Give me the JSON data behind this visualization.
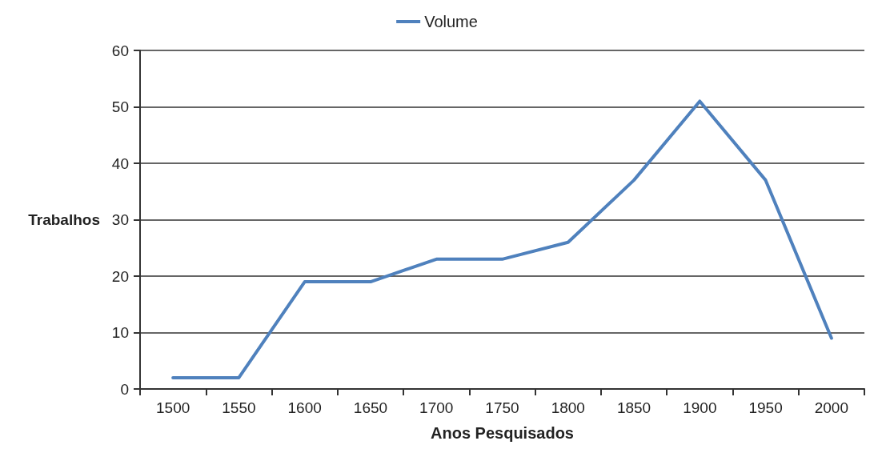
{
  "chart_data": {
    "type": "line",
    "xlabel": "Anos Pesquisados",
    "ylabel": "Trabalhos",
    "categories": [
      "1500",
      "1550",
      "1600",
      "1650",
      "1700",
      "1750",
      "1800",
      "1850",
      "1900",
      "1950",
      "2000"
    ],
    "series": [
      {
        "name": "Volume",
        "color": "#4f81bd",
        "values": [
          2,
          2,
          19,
          19,
          23,
          23,
          26,
          37,
          51,
          37,
          9
        ]
      }
    ],
    "ylim": [
      0,
      60
    ],
    "yticks": [
      0,
      10,
      20,
      30,
      40,
      50,
      60
    ],
    "grid": "y",
    "legend": "top",
    "marker": "none",
    "line_style": "solid"
  }
}
